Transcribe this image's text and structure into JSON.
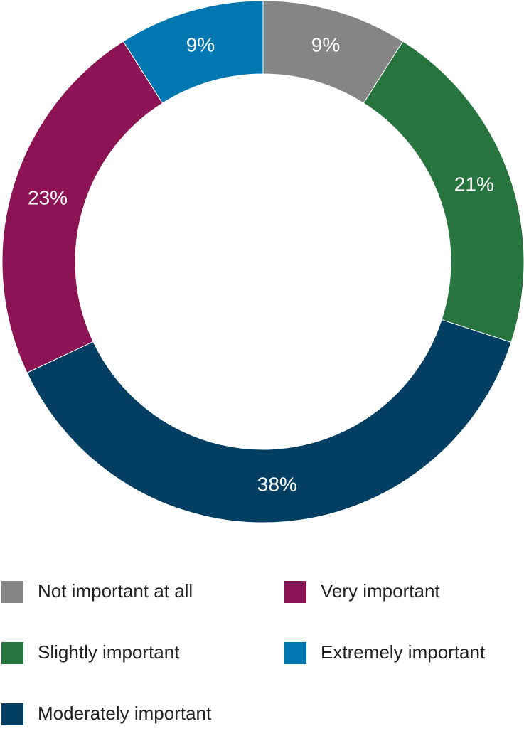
{
  "chart_data": {
    "type": "donut",
    "categories": [
      "Not important at all",
      "Slightly important",
      "Moderately important",
      "Very important",
      "Extremely important"
    ],
    "values": [
      9,
      21,
      38,
      23,
      9
    ],
    "value_labels": [
      "9%",
      "21%",
      "38%",
      "23%",
      "9%"
    ],
    "colors": [
      "#858585",
      "#27743e",
      "#033f63",
      "#8c1454",
      "#0077b0"
    ]
  }
}
